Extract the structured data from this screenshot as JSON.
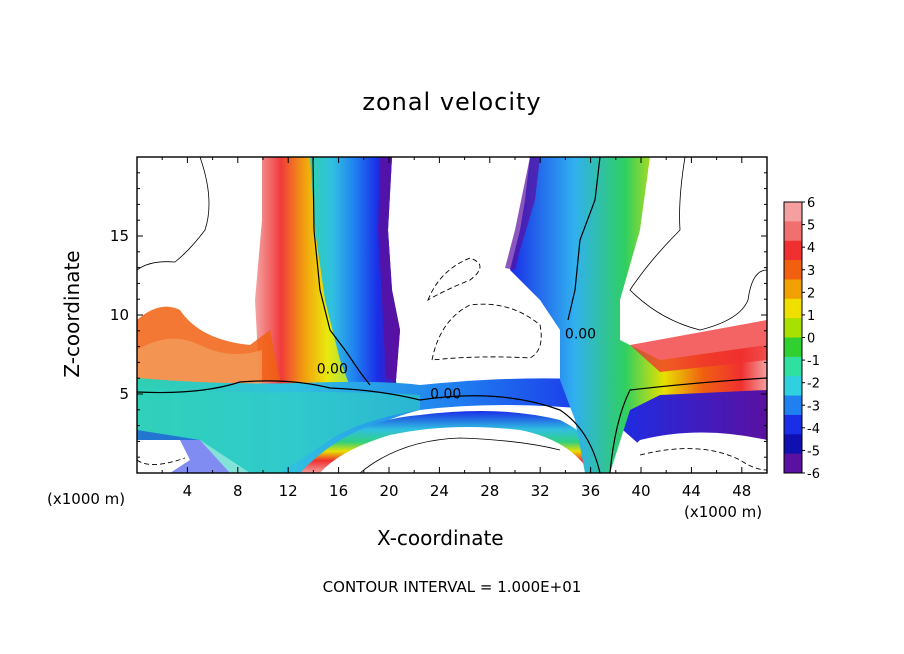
{
  "chart_data": {
    "type": "heatmap",
    "title": "zonal velocity",
    "xlabel": "X-coordinate",
    "ylabel": "Z-coordinate",
    "x_unit_label": "(x1000 m)",
    "footer": "CONTOUR INTERVAL = 1.000E+01",
    "xlim": [
      0,
      50
    ],
    "ylim": [
      0,
      20
    ],
    "x_ticks": [
      4,
      8,
      12,
      16,
      20,
      24,
      28,
      32,
      36,
      40,
      44,
      48
    ],
    "y_ticks": [
      5,
      10,
      15
    ],
    "colorbar": {
      "range": [
        -6,
        6
      ],
      "ticks": [
        6,
        5,
        4,
        3,
        2,
        1,
        0,
        -1,
        -2,
        -3,
        -4,
        -5,
        -6
      ],
      "colors": [
        "#f4a0a0",
        "#f07070",
        "#f03030",
        "#f06010",
        "#f0a000",
        "#f0e000",
        "#a8e000",
        "#30d030",
        "#30e0a0",
        "#30d0e0",
        "#2080f0",
        "#1a2ee8",
        "#1010b0",
        "#5a10a0"
      ]
    },
    "contour_labels": [
      {
        "text": "0.00",
        "x": 15.5,
        "z": 6.3
      },
      {
        "text": "0.00",
        "x": 24.5,
        "z": 4.7
      },
      {
        "text": "0.00",
        "x": 35.2,
        "z": 8.5
      }
    ]
  }
}
